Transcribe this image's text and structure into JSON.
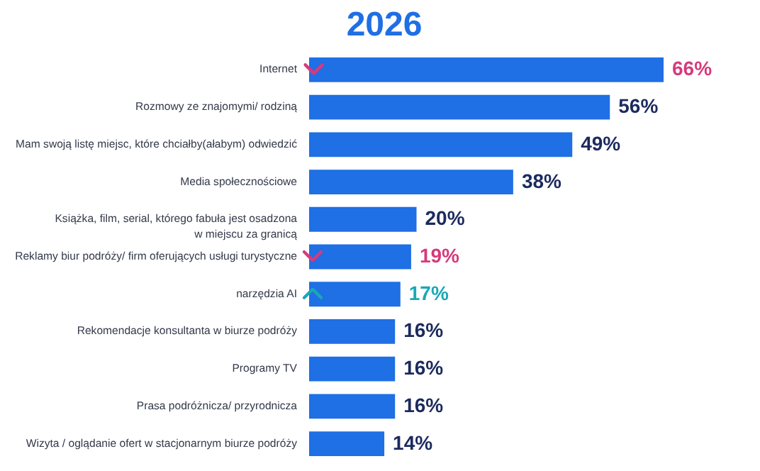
{
  "chart_data": {
    "type": "bar",
    "orientation": "horizontal",
    "title": "2026",
    "categories": [
      "Internet",
      "Rozmowy ze znajomymi/ rodziną",
      "Mam swoją listę miejsc, które chciałby(ałabym) odwiedzić",
      "Media społecznościowe",
      "Książka, film, serial, którego fabuła jest osadzona w miejscu za granicą",
      "Reklamy biur podróży/ firm oferujących usługi turystyczne",
      "narzędzia AI",
      "Rekomendacje konsultanta w biurze podróży",
      "Programy TV",
      "Prasa podróżnicza/ przyrodnicza",
      "Wizyta / oglądanie ofert w stacjonarnym biurze podróży"
    ],
    "values": [
      66,
      56,
      49,
      38,
      20,
      19,
      17,
      16,
      16,
      16,
      14
    ],
    "value_labels": [
      "66%",
      "56%",
      "49%",
      "38%",
      "20%",
      "19%",
      "17%",
      "16%",
      "16%",
      "16%",
      "14%"
    ],
    "color": "#1f6fe5"
  }
}
